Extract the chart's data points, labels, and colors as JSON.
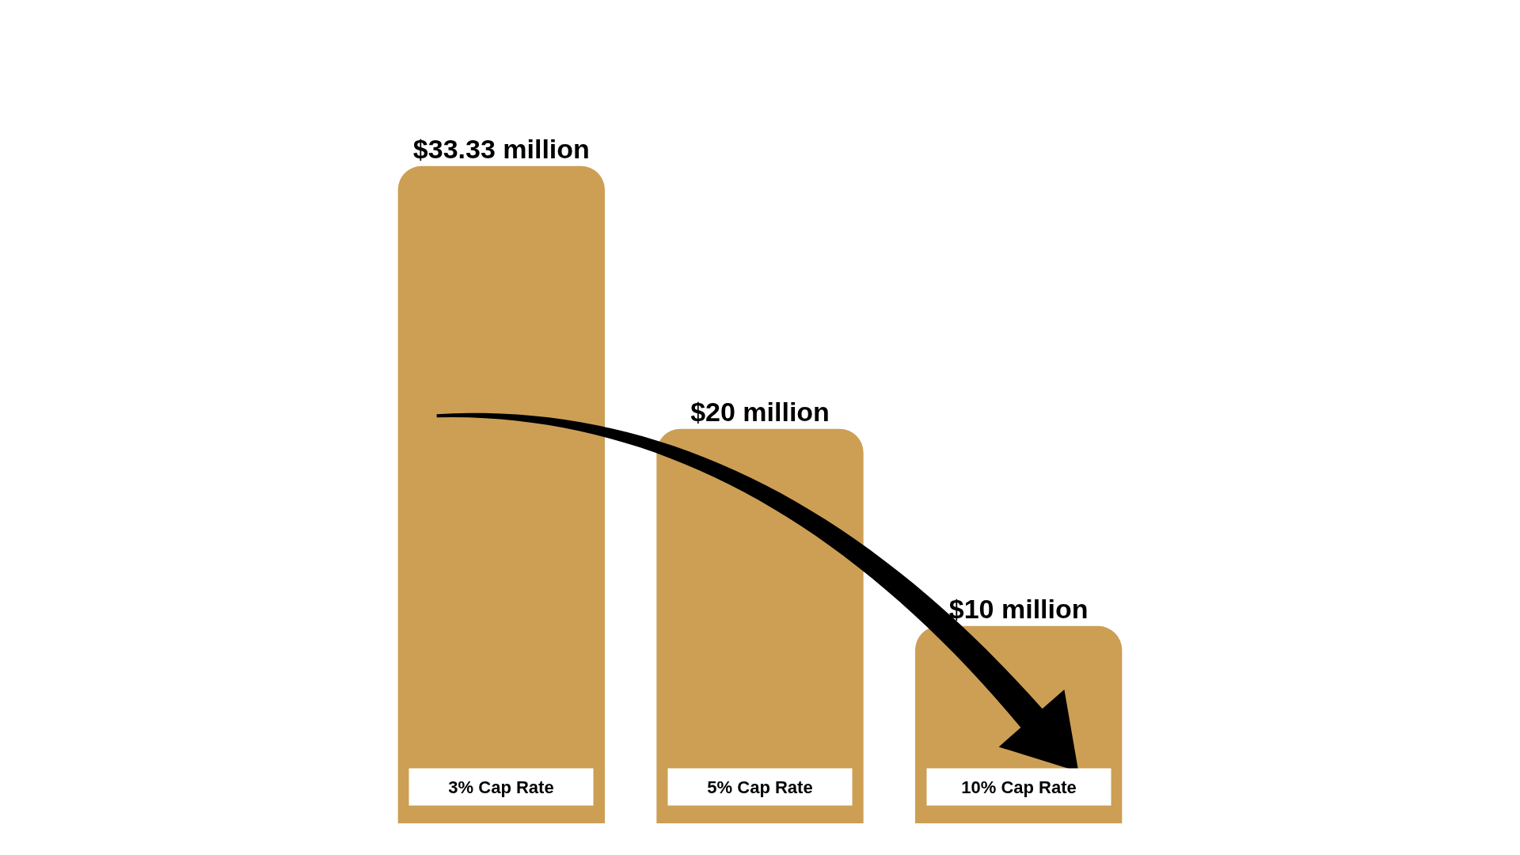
{
  "chart_data": {
    "type": "bar",
    "categories": [
      "3% Cap Rate",
      "5% Cap Rate",
      "10% Cap Rate"
    ],
    "values": [
      33.33,
      20,
      10
    ],
    "value_labels": [
      "$33.33 million",
      "$20 million",
      "$10 million"
    ],
    "color": "#cc9f55"
  }
}
